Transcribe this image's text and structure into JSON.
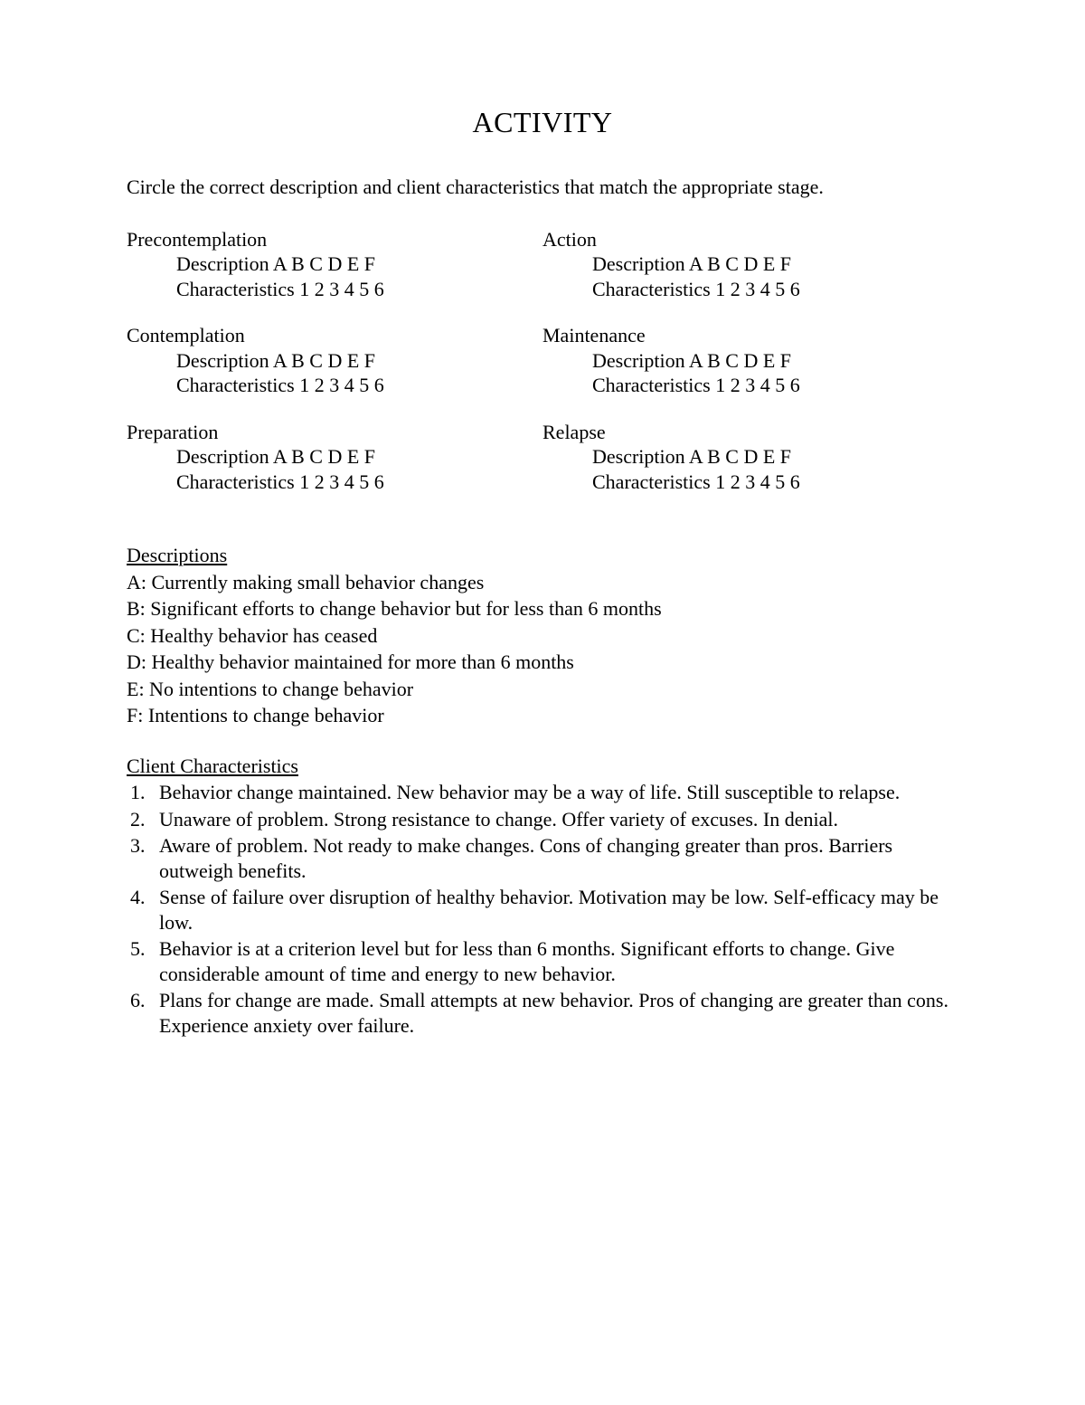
{
  "title": "ACTIVITY",
  "instructions": "Circle the correct description and client characteristics that match the appropriate stage.",
  "description_line": "Description A B C D E F",
  "characteristics_line": "Characteristics 1 2 3 4 5 6",
  "stages_left": [
    "Precontemplation",
    "Contemplation",
    "Preparation"
  ],
  "stages_right": [
    "Action",
    "Maintenance",
    "Relapse"
  ],
  "descriptions_heading": "Descriptions",
  "descriptions": [
    "A: Currently making small behavior changes",
    "B: Significant efforts to change behavior but for less than 6 months",
    "C: Healthy behavior has ceased",
    "D: Healthy behavior maintained for more than 6 months",
    "E: No intentions to change behavior",
    "F: Intentions to change behavior"
  ],
  "characteristics_heading": "Client Characteristics",
  "characteristics": [
    "Behavior change maintained. New behavior may be a way of life. Still susceptible to relapse.",
    "Unaware of problem. Strong resistance to change. Offer variety of excuses. In denial.",
    "Aware of problem. Not ready to make changes. Cons of changing greater than pros. Barriers outweigh benefits.",
    "Sense of failure over disruption of healthy behavior. Motivation may be low. Self-efficacy may be low.",
    "Behavior is at a criterion level but for less than 6 months. Significant efforts to change. Give considerable amount of time and energy to new behavior.",
    "Plans for change are made. Small attempts at new behavior. Pros of changing are greater than cons. Experience anxiety over failure."
  ]
}
